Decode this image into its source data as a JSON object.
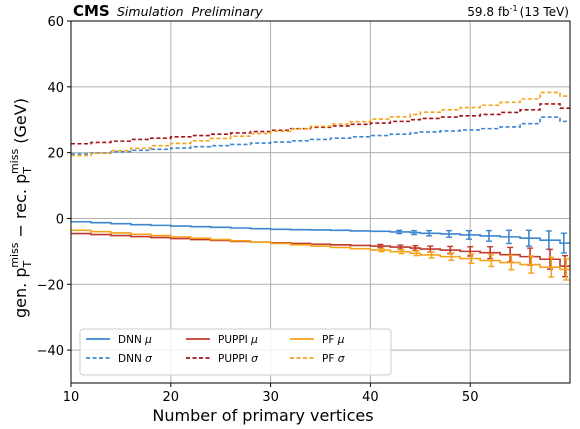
{
  "chart_data": {
    "type": "line",
    "header": {
      "experiment": "CMS",
      "status": "Simulation  Preliminary",
      "luminosity": "59.8 fb",
      "luminosity_exp": "-1",
      "energy": "(13 TeV)"
    },
    "xlabel": "Number of primary vertices",
    "ylabel": {
      "gen": "gen. p",
      "sub_T": "T",
      "sup_miss": "miss",
      "minus": " − rec. p",
      "sub_T2": "T",
      "sup_miss2": "miss",
      "unit": " (GeV)"
    },
    "xlim": [
      10,
      60
    ],
    "ylim": [
      -50,
      60
    ],
    "xticks": [
      10,
      20,
      30,
      40,
      50
    ],
    "yticks": [
      -40,
      -20,
      0,
      20,
      40,
      60
    ],
    "ytick_labels": [
      "−40",
      "−20",
      "0",
      "20",
      "40",
      "60"
    ],
    "grid": true,
    "legend_position": "bottom-left",
    "edges": [
      10,
      12,
      14,
      16,
      18,
      20,
      22,
      24,
      26,
      28,
      30,
      32,
      34,
      36,
      38,
      40,
      42,
      44,
      45,
      47,
      49,
      51,
      53,
      55,
      57,
      59,
      60
    ],
    "series": [
      {
        "name": "DNN μ",
        "label_main": "DNN ",
        "label_sym": "μ",
        "color": "#3c86cf",
        "dash": false,
        "errorbars": true,
        "values": [
          -1.0,
          -1.3,
          -1.6,
          -1.9,
          -2.1,
          -2.3,
          -2.5,
          -2.7,
          -2.9,
          -3.1,
          -3.3,
          -3.4,
          -3.5,
          -3.6,
          -3.8,
          -3.9,
          -4.1,
          -4.3,
          -4.5,
          -4.7,
          -5.0,
          -5.3,
          -5.6,
          -6.0,
          -6.6,
          -7.5,
          -7.8
        ],
        "errors": [
          0.2,
          0.2,
          0.2,
          0.2,
          0.2,
          0.2,
          0.2,
          0.2,
          0.2,
          0.2,
          0.2,
          0.2,
          0.2,
          0.3,
          0.3,
          0.4,
          0.5,
          0.6,
          0.8,
          1.0,
          1.3,
          1.6,
          2.0,
          2.4,
          2.8,
          3.0,
          3.0
        ]
      },
      {
        "name": "DNN σ",
        "label_main": "DNN ",
        "label_sym": "σ",
        "color": "#3c86cf",
        "dash": true,
        "errorbars": false,
        "values": [
          19.6,
          19.9,
          20.3,
          20.7,
          21.0,
          21.4,
          21.8,
          22.1,
          22.5,
          22.9,
          23.2,
          23.6,
          24.0,
          24.4,
          24.8,
          25.2,
          25.6,
          26.0,
          26.3,
          26.6,
          26.9,
          27.3,
          27.8,
          28.8,
          30.8,
          29.5,
          29.5
        ]
      },
      {
        "name": "PUPPI μ",
        "label_main": "PUPPI ",
        "label_sym": "μ",
        "color": "#c0392b",
        "dash": false,
        "errorbars": true,
        "values": [
          -4.6,
          -4.9,
          -5.2,
          -5.5,
          -5.8,
          -6.1,
          -6.4,
          -6.7,
          -7.0,
          -7.2,
          -7.4,
          -7.6,
          -7.8,
          -8.0,
          -8.2,
          -8.4,
          -8.7,
          -9.0,
          -9.3,
          -9.6,
          -10.0,
          -10.4,
          -11.0,
          -11.6,
          -12.4,
          -14.5,
          -15.5
        ],
        "errors": [
          0.2,
          0.2,
          0.2,
          0.2,
          0.2,
          0.2,
          0.2,
          0.2,
          0.2,
          0.2,
          0.2,
          0.2,
          0.3,
          0.3,
          0.4,
          0.5,
          0.6,
          0.7,
          0.9,
          1.1,
          1.4,
          1.8,
          2.2,
          2.6,
          3.0,
          3.2,
          3.2
        ]
      },
      {
        "name": "PUPPI σ",
        "label_main": "PUPPI ",
        "label_sym": "σ",
        "color": "#a31515",
        "dash": true,
        "errorbars": false,
        "values": [
          22.7,
          23.1,
          23.5,
          24.0,
          24.4,
          24.8,
          25.2,
          25.6,
          26.0,
          26.4,
          26.8,
          27.3,
          27.7,
          28.1,
          28.6,
          29.0,
          29.5,
          30.0,
          30.4,
          30.8,
          31.2,
          31.6,
          32.2,
          33.0,
          34.8,
          33.5,
          33.5
        ]
      },
      {
        "name": "PF μ",
        "label_main": "PF ",
        "label_sym": "μ",
        "color": "#f5a31a",
        "dash": false,
        "errorbars": true,
        "values": [
          -3.6,
          -4.0,
          -4.4,
          -4.8,
          -5.2,
          -5.6,
          -6.0,
          -6.4,
          -6.8,
          -7.2,
          -7.6,
          -8.0,
          -8.4,
          -8.8,
          -9.2,
          -9.6,
          -10.1,
          -10.6,
          -11.1,
          -11.6,
          -12.2,
          -12.8,
          -13.4,
          -14.0,
          -14.8,
          -15.5,
          -15.8
        ],
        "errors": [
          0.2,
          0.2,
          0.2,
          0.2,
          0.2,
          0.2,
          0.2,
          0.2,
          0.2,
          0.2,
          0.2,
          0.2,
          0.3,
          0.3,
          0.4,
          0.5,
          0.6,
          0.7,
          0.9,
          1.1,
          1.4,
          1.8,
          2.2,
          2.6,
          3.0,
          3.2,
          3.2
        ]
      },
      {
        "name": "PF σ",
        "label_main": "PF ",
        "label_sym": "σ",
        "color": "#f5a31a",
        "dash": true,
        "errorbars": false,
        "values": [
          19.1,
          19.8,
          20.6,
          21.3,
          22.1,
          22.8,
          23.6,
          24.3,
          25.0,
          25.8,
          26.5,
          27.2,
          28.0,
          28.7,
          29.4,
          30.2,
          30.9,
          31.6,
          32.3,
          33.0,
          33.7,
          34.4,
          35.3,
          36.3,
          38.3,
          37.2,
          37.2
        ]
      }
    ]
  }
}
